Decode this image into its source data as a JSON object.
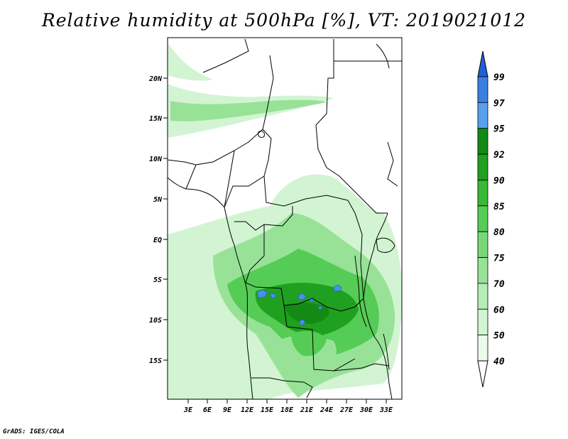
{
  "title": "Relative humidity at 500hPa [%], VT: 2019021012",
  "credit": "GrADS: IGES/COLA",
  "map": {
    "lat_labels": [
      "20N",
      "15N",
      "10N",
      "5N",
      "EQ",
      "5S",
      "10S",
      "15S"
    ],
    "lon_labels": [
      "3E",
      "6E",
      "9E",
      "12E",
      "15E",
      "18E",
      "21E",
      "24E",
      "27E",
      "30E",
      "33E"
    ]
  },
  "colorbar": {
    "levels": [
      "99",
      "97",
      "95",
      "92",
      "90",
      "85",
      "80",
      "75",
      "70",
      "60",
      "50",
      "40"
    ],
    "colors": [
      "#1f5fd6",
      "#3b7fe0",
      "#5aa0ee",
      "#138a13",
      "#20a020",
      "#37b837",
      "#55cc55",
      "#78d878",
      "#98e298",
      "#b6ecb6",
      "#d2f4d2",
      "#ebfaeb"
    ],
    "over_color": "#1f5fd6",
    "under_color": "#ffffff"
  }
}
